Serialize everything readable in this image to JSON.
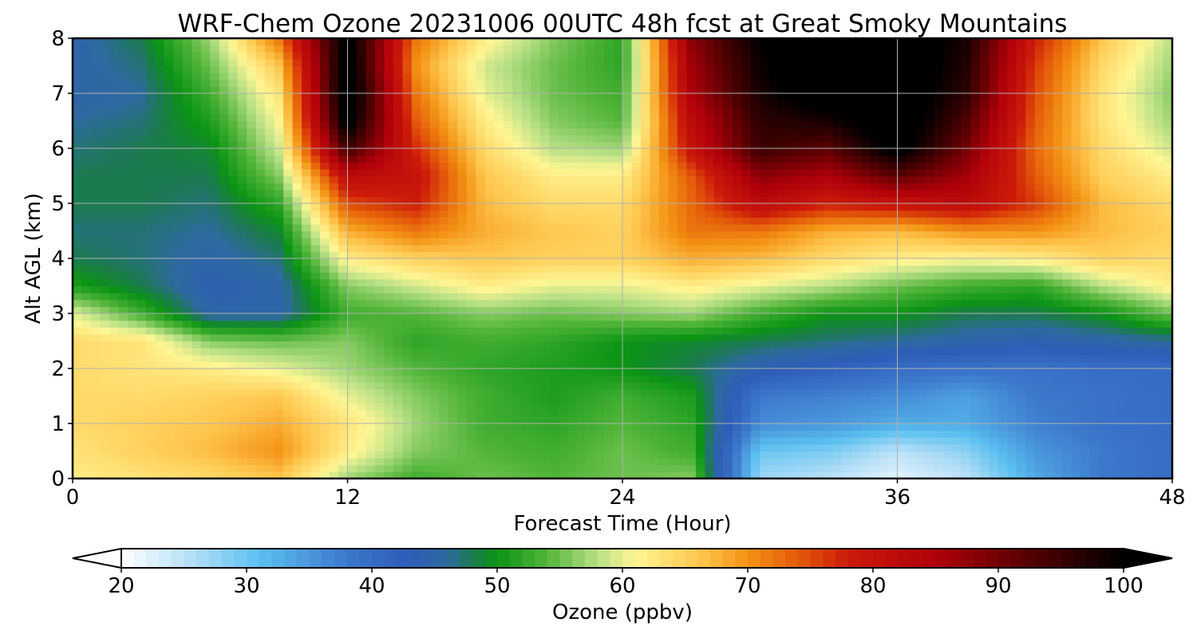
{
  "chart_data": {
    "type": "heatmap",
    "title": "WRF-Chem Ozone  20231006 00UTC 48h fcst at Great Smoky Mountains",
    "xlabel": "Forecast Time (Hour)",
    "ylabel": "Alt AGL (km)",
    "xlim": [
      0,
      48
    ],
    "ylim": [
      0,
      8
    ],
    "xticks": [
      0,
      12,
      24,
      36,
      48
    ],
    "yticks": [
      0,
      1,
      2,
      3,
      4,
      5,
      6,
      7,
      8
    ],
    "grid": true,
    "x": [
      0,
      3,
      6,
      9,
      12,
      15,
      18,
      21,
      24,
      27,
      30,
      33,
      36,
      39,
      42,
      45,
      48
    ],
    "y": [
      0,
      0.5,
      1,
      1.5,
      2,
      2.5,
      3,
      3.5,
      4,
      4.5,
      5,
      5.5,
      6,
      6.5,
      7,
      7.5,
      8
    ],
    "z": [
      [
        62,
        63,
        64,
        66,
        57,
        53,
        55,
        54,
        55,
        56,
        27,
        25,
        22,
        25,
        33,
        38,
        40
      ],
      [
        63,
        65,
        67,
        70,
        62,
        56,
        54,
        53,
        55,
        53,
        30,
        29,
        25,
        28,
        35,
        38,
        40
      ],
      [
        64,
        65,
        66,
        68,
        63,
        57,
        53,
        52,
        54,
        52,
        36,
        35,
        33,
        33,
        37,
        39,
        40
      ],
      [
        64,
        64,
        65,
        66,
        60,
        56,
        53,
        51,
        53,
        51,
        38,
        37,
        36,
        34,
        38,
        39,
        40
      ],
      [
        64,
        63,
        62,
        60,
        57,
        54,
        52,
        51,
        50,
        48,
        44,
        42,
        40,
        39,
        39,
        40,
        40
      ],
      [
        64,
        63,
        56,
        55,
        56,
        52,
        53,
        52,
        50,
        49,
        48,
        47,
        46,
        45,
        44,
        45,
        46
      ],
      [
        60,
        53,
        45,
        45,
        53,
        54,
        56,
        55,
        56,
        57,
        53,
        50,
        50,
        48,
        48,
        50,
        55
      ],
      [
        51,
        48,
        44,
        45,
        56,
        59,
        62,
        60,
        60,
        62,
        60,
        58,
        55,
        53,
        52,
        58,
        62
      ],
      [
        48,
        47,
        45,
        47,
        62,
        65,
        66,
        65,
        65,
        68,
        67,
        64,
        62,
        61,
        62,
        65,
        64
      ],
      [
        47,
        47,
        46,
        49,
        68,
        72,
        68,
        66,
        65,
        72,
        72,
        68,
        67,
        70,
        70,
        67,
        65
      ],
      [
        48,
        48,
        47,
        52,
        75,
        78,
        67,
        64,
        64,
        73,
        82,
        78,
        80,
        82,
        76,
        67,
        64
      ],
      [
        48,
        48,
        48,
        56,
        82,
        80,
        66,
        62,
        62,
        74,
        88,
        85,
        92,
        86,
        74,
        65,
        62
      ],
      [
        47,
        48,
        49,
        59,
        95,
        77,
        64,
        58,
        57,
        80,
        95,
        92,
        102,
        90,
        73,
        64,
        59
      ],
      [
        46,
        47,
        51,
        61,
        102,
        74,
        62,
        56,
        54,
        82,
        96,
        98,
        104,
        93,
        74,
        63,
        57
      ],
      [
        45,
        46,
        53,
        63,
        104,
        72,
        60,
        55,
        53,
        85,
        98,
        104,
        104,
        96,
        75,
        63,
        56
      ],
      [
        45,
        47,
        55,
        66,
        103,
        70,
        59,
        55,
        52,
        86,
        99,
        104,
        104,
        97,
        76,
        64,
        57
      ],
      [
        45,
        48,
        57,
        72,
        102,
        72,
        62,
        56,
        52,
        88,
        100,
        104,
        104,
        98,
        78,
        66,
        58
      ]
    ],
    "colorbar": {
      "label": "Ozone  (ppbv)",
      "vmin": 20,
      "vmax": 100,
      "ticks": [
        20,
        30,
        40,
        50,
        60,
        70,
        80,
        90,
        100
      ],
      "extend": "both",
      "stops": [
        {
          "v": 20,
          "c": "#ffffff"
        },
        {
          "v": 26,
          "c": "#aedcf6"
        },
        {
          "v": 31,
          "c": "#5bc0f0"
        },
        {
          "v": 38,
          "c": "#3c78cc"
        },
        {
          "v": 43,
          "c": "#2e5cb8"
        },
        {
          "v": 46,
          "c": "#2e6aa0"
        },
        {
          "v": 48,
          "c": "#1b7a4e"
        },
        {
          "v": 50,
          "c": "#0b9414"
        },
        {
          "v": 54,
          "c": "#52b53a"
        },
        {
          "v": 58,
          "c": "#b8e086"
        },
        {
          "v": 61,
          "c": "#fff694"
        },
        {
          "v": 66,
          "c": "#ffc850"
        },
        {
          "v": 70,
          "c": "#f39214"
        },
        {
          "v": 74,
          "c": "#e45a0a"
        },
        {
          "v": 78,
          "c": "#cc1a0a"
        },
        {
          "v": 85,
          "c": "#b0000a"
        },
        {
          "v": 92,
          "c": "#5a0002"
        },
        {
          "v": 100,
          "c": "#000000"
        }
      ]
    }
  }
}
